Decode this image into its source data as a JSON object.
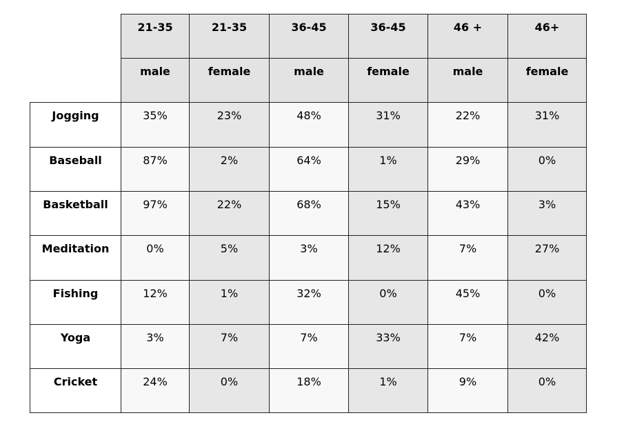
{
  "table": {
    "header_row_1": [
      "21-35",
      "21-35",
      "36-45",
      "36-45",
      "46 +",
      "46+"
    ],
    "header_row_2": [
      "male",
      "female",
      "male",
      "female",
      "male",
      "female"
    ],
    "rows": [
      {
        "label": "Jogging",
        "values": [
          "35%",
          "23%",
          "48%",
          "31%",
          "22%",
          "31%"
        ]
      },
      {
        "label": "Baseball",
        "values": [
          "87%",
          "2%",
          "64%",
          "1%",
          "29%",
          "0%"
        ]
      },
      {
        "label": "Basketball",
        "values": [
          "97%",
          "22%",
          "68%",
          "15%",
          "43%",
          "3%"
        ]
      },
      {
        "label": "Meditation",
        "values": [
          "0%",
          "5%",
          "3%",
          "12%",
          "7%",
          "27%"
        ]
      },
      {
        "label": "Fishing",
        "values": [
          "12%",
          "1%",
          "32%",
          "0%",
          "45%",
          "0%"
        ]
      },
      {
        "label": "Yoga",
        "values": [
          "3%",
          "7%",
          "7%",
          "33%",
          "7%",
          "42%"
        ]
      },
      {
        "label": "Cricket",
        "values": [
          "24%",
          "0%",
          "18%",
          "1%",
          "9%",
          "0%"
        ]
      }
    ]
  },
  "colors": {
    "header_fill": "#e3e3e3",
    "band_light": "#f8f8f8",
    "band_dark": "#e7e7e7",
    "label_fill": "#ffffff",
    "border": "#222222"
  }
}
